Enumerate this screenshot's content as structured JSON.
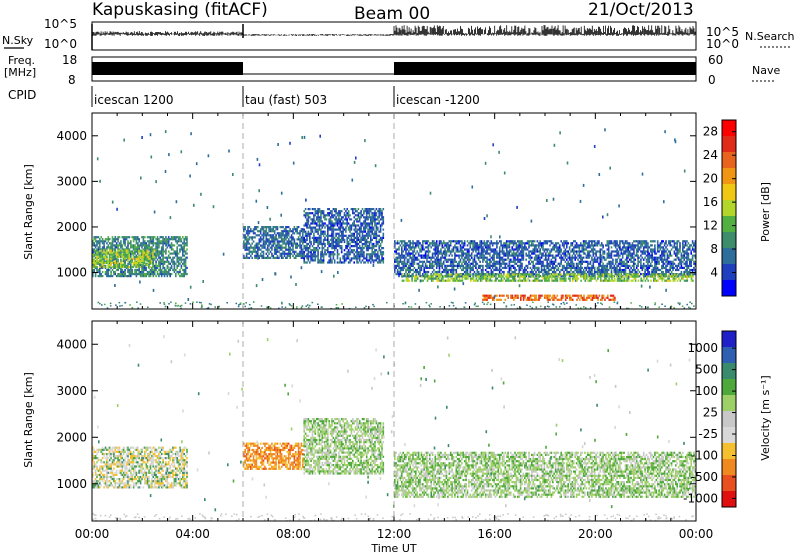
{
  "header": {
    "station": "Kapuskasing (fitACF)",
    "beam": "Beam 00",
    "date": "21/Oct/2013"
  },
  "sidebar_labels": {
    "nsky": "N.Sky",
    "freq": "Freq.",
    "freq_unit": "[MHz]",
    "cpid": "CPID",
    "nsearch": "N.Search",
    "nave": "Nave"
  },
  "strip_ticks": {
    "noise_left": [
      "10^5",
      "10^0"
    ],
    "noise_right": [
      "10^5",
      "10^0"
    ],
    "freq_left": [
      "18",
      "8"
    ],
    "nave_right": [
      "60",
      "0"
    ]
  },
  "cpid_segments": [
    {
      "label": "icescan 1200",
      "start_hour": 0,
      "end_hour": 6
    },
    {
      "label": "tau (fast) 503",
      "start_hour": 6,
      "end_hour": 12
    },
    {
      "label": "icescan -1200",
      "start_hour": 12,
      "end_hour": 24
    }
  ],
  "colors": {
    "power_scale": [
      "#0000ff",
      "#1f3fbf",
      "#2e6e9a",
      "#3d8c6b",
      "#52b043",
      "#b4d62a",
      "#f0c814",
      "#f09614",
      "#e8641e",
      "#e02a1a",
      "#ff0000"
    ],
    "velocity_scale": [
      "#2020c8",
      "#2e5fb0",
      "#3a8a6e",
      "#4ea83c",
      "#9ed068",
      "#c8c8c8",
      "#d8d8d8",
      "#f5c030",
      "#f08a20",
      "#e85020",
      "#e01010"
    ]
  },
  "chart_data": [
    {
      "type": "heatmap",
      "name": "Power",
      "ylabel": "Slant Range [km]",
      "xlim": [
        0,
        24
      ],
      "ylim": [
        200,
        4500
      ],
      "yticks": [
        "1000",
        "2000",
        "3000",
        "4000"
      ],
      "colorbar_label": "Power [dB]",
      "colorbar_ticks": [
        "4",
        "8",
        "12",
        "16",
        "20",
        "24",
        "28"
      ],
      "colorbar_range": [
        0,
        30
      ],
      "echo_regions": [
        {
          "t_start": 0.0,
          "t_end": 3.8,
          "r_low": 900,
          "r_high": 1800,
          "level": 8
        },
        {
          "t_start": 0.0,
          "t_end": 2.5,
          "r_low": 1100,
          "r_high": 1500,
          "level": 14
        },
        {
          "t_start": 6.0,
          "t_end": 8.4,
          "r_low": 1300,
          "r_high": 2000,
          "level": 6
        },
        {
          "t_start": 8.4,
          "t_end": 11.6,
          "r_low": 1200,
          "r_high": 2400,
          "level": 5
        },
        {
          "t_start": 12.0,
          "t_end": 24.0,
          "r_low": 900,
          "r_high": 1700,
          "level": 5
        },
        {
          "t_start": 12.3,
          "t_end": 23.9,
          "r_low": 800,
          "r_high": 1000,
          "level": 13
        },
        {
          "t_start": 15.5,
          "t_end": 20.8,
          "r_low": 380,
          "r_high": 520,
          "level": 24
        }
      ]
    },
    {
      "type": "heatmap",
      "name": "Velocity",
      "ylabel": "Slant Range [km]",
      "xlabel": "Time UT",
      "xlim": [
        0,
        24
      ],
      "ylim": [
        200,
        4500
      ],
      "xticks": [
        "00:00",
        "04:00",
        "08:00",
        "12:00",
        "16:00",
        "20:00",
        "00:00"
      ],
      "yticks": [
        "1000",
        "2000",
        "3000",
        "4000"
      ],
      "colorbar_label": "Velocity [m s⁻¹]",
      "colorbar_ticks": [
        "1000",
        "500",
        "100",
        "25",
        "-25",
        "-100",
        "-500",
        "-1000"
      ],
      "echo_regions": [
        {
          "t_start": 0.0,
          "t_end": 3.8,
          "r_low": 900,
          "r_high": 1800,
          "velocity": -100
        },
        {
          "t_start": 6.0,
          "t_end": 8.4,
          "r_low": 1300,
          "r_high": 1900,
          "velocity": -500
        },
        {
          "t_start": 8.4,
          "t_end": 11.6,
          "r_low": 1200,
          "r_high": 2400,
          "velocity": 0
        },
        {
          "t_start": 12.0,
          "t_end": 24.0,
          "r_low": 700,
          "r_high": 1700,
          "velocity": 0
        }
      ]
    }
  ]
}
